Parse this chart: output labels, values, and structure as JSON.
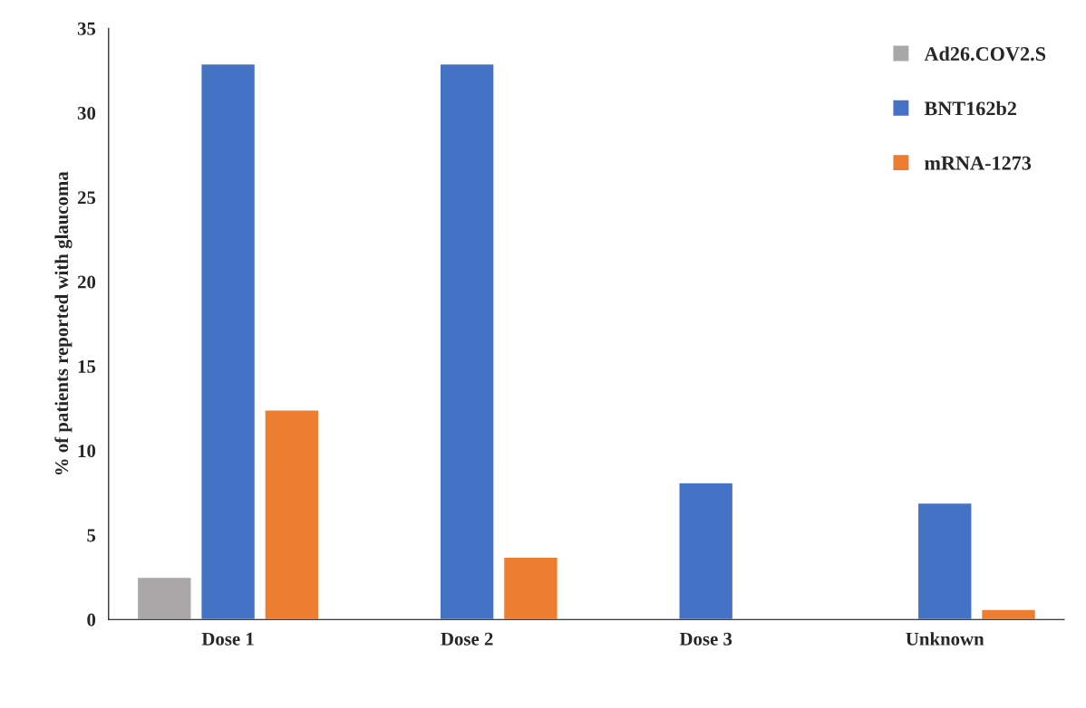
{
  "chart_data": {
    "type": "bar",
    "ylabel": "% of patients reported with glaucoma",
    "categories": [
      "Dose 1",
      "Dose 2",
      "Dose 3",
      "Unknown"
    ],
    "series": [
      {
        "name": "Ad26.COV2.S",
        "color": "#a9a7a7",
        "values": [
          2.5,
          null,
          null,
          null
        ]
      },
      {
        "name": "BNT162b2",
        "color": "#4472c4",
        "values": [
          32.9,
          32.9,
          8.1,
          6.9
        ]
      },
      {
        "name": "mRNA-1273",
        "color": "#ed7d31",
        "values": [
          12.4,
          3.7,
          null,
          0.6
        ]
      }
    ],
    "ylim": [
      0,
      35
    ],
    "yticks": [
      0,
      5,
      10,
      15,
      20,
      25,
      30,
      35
    ],
    "grid": false,
    "legend": "top right"
  }
}
